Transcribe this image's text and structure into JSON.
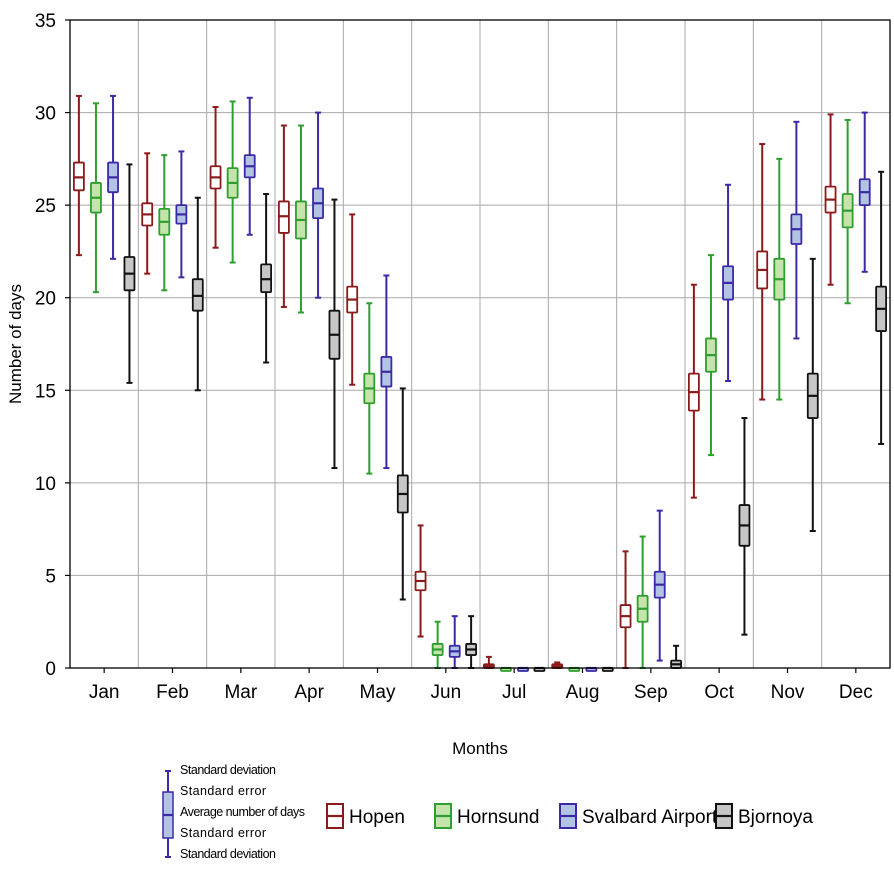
{
  "chart_data": {
    "type": "box",
    "xlabel": "Months",
    "ylabel": "Number of days",
    "ylim": [
      0,
      35
    ],
    "yticks": [
      0,
      5,
      10,
      15,
      20,
      25,
      30,
      35
    ],
    "grid": true,
    "legend_position": "bottom",
    "categories": [
      "Jan",
      "Feb",
      "Mar",
      "Apr",
      "May",
      "Jun",
      "Jul",
      "Aug",
      "Sep",
      "Oct",
      "Nov",
      "Dec"
    ],
    "legend_key": {
      "items": [
        "Standard deviation",
        "Standard error",
        "Average number of days",
        "Standard error",
        "Standard deviation"
      ]
    },
    "series": [
      {
        "name": "Hopen",
        "color": "#8b1a1a",
        "fill": "#ffffff",
        "mean": [
          26.5,
          24.5,
          26.5,
          24.4,
          19.9,
          4.7,
          0.1,
          0.1,
          2.8,
          14.9,
          21.5,
          25.3
        ],
        "se_low": [
          25.8,
          23.9,
          25.9,
          23.5,
          19.2,
          4.2,
          0.0,
          0.0,
          2.2,
          13.9,
          20.5,
          24.6
        ],
        "se_high": [
          27.3,
          25.1,
          27.1,
          25.2,
          20.6,
          5.2,
          0.2,
          0.2,
          3.4,
          15.9,
          22.5,
          26.0
        ],
        "sd_low": [
          22.3,
          21.3,
          22.7,
          19.5,
          15.3,
          1.7,
          0.0,
          0.0,
          0.0,
          9.2,
          14.5,
          20.7
        ],
        "sd_high": [
          30.9,
          27.8,
          30.3,
          29.3,
          24.5,
          7.7,
          0.6,
          0.3,
          6.3,
          20.7,
          28.3,
          29.9
        ]
      },
      {
        "name": "Hornsund",
        "color": "#2e9e2e",
        "fill": "#c4e4ab",
        "mean": [
          25.4,
          24.1,
          26.2,
          24.2,
          15.1,
          1.0,
          0.0,
          0.0,
          3.2,
          16.9,
          21.0,
          24.7
        ],
        "se_low": [
          24.6,
          23.4,
          25.4,
          23.2,
          14.3,
          0.7,
          0.0,
          0.0,
          2.5,
          16.0,
          19.9,
          23.8
        ],
        "se_high": [
          26.2,
          24.8,
          27.0,
          25.2,
          15.9,
          1.3,
          0.0,
          0.0,
          3.9,
          17.8,
          22.1,
          25.6
        ],
        "sd_low": [
          20.3,
          20.4,
          21.9,
          19.2,
          10.5,
          0.0,
          0.0,
          0.0,
          0.0,
          11.5,
          14.5,
          19.7
        ],
        "sd_high": [
          30.5,
          27.7,
          30.6,
          29.3,
          19.7,
          2.5,
          0.0,
          0.0,
          7.1,
          22.3,
          27.5,
          29.6
        ]
      },
      {
        "name": "Svalbard Airport",
        "color": "#3a2aa6",
        "fill": "#b3c3e4",
        "mean": [
          26.5,
          24.5,
          27.1,
          25.1,
          16.0,
          0.9,
          0.0,
          0.0,
          4.5,
          20.8,
          23.7,
          25.7
        ],
        "se_low": [
          25.7,
          24.0,
          26.5,
          24.3,
          15.2,
          0.6,
          0.0,
          0.0,
          3.8,
          19.9,
          22.9,
          25.0
        ],
        "se_high": [
          27.3,
          25.0,
          27.7,
          25.9,
          16.8,
          1.2,
          0.0,
          0.0,
          5.2,
          21.7,
          24.5,
          26.4
        ],
        "sd_low": [
          22.1,
          21.1,
          23.4,
          20.0,
          10.8,
          0.0,
          0.0,
          0.0,
          0.4,
          15.5,
          17.8,
          21.4
        ],
        "sd_high": [
          30.9,
          27.9,
          30.8,
          30.0,
          21.2,
          2.8,
          0.0,
          0.0,
          8.5,
          26.1,
          29.5,
          30.0
        ]
      },
      {
        "name": "Bjornoya",
        "color": "#111111",
        "fill": "#c6c6c6",
        "mean": [
          21.3,
          20.1,
          21.0,
          18.0,
          9.4,
          1.0,
          0.0,
          0.0,
          0.2,
          7.7,
          14.7,
          19.4
        ],
        "se_low": [
          20.4,
          19.3,
          20.3,
          16.7,
          8.4,
          0.7,
          0.0,
          0.0,
          0.0,
          6.6,
          13.5,
          18.2
        ],
        "se_high": [
          22.2,
          21.0,
          21.8,
          19.3,
          10.4,
          1.3,
          0.0,
          0.0,
          0.4,
          8.8,
          15.9,
          20.6
        ],
        "sd_low": [
          15.4,
          15.0,
          16.5,
          10.8,
          3.7,
          0.0,
          0.0,
          0.0,
          0.0,
          1.8,
          7.4,
          12.1
        ],
        "sd_high": [
          27.2,
          25.4,
          25.6,
          25.3,
          15.1,
          2.8,
          0.0,
          0.0,
          1.2,
          13.5,
          22.1,
          26.8
        ]
      }
    ]
  }
}
